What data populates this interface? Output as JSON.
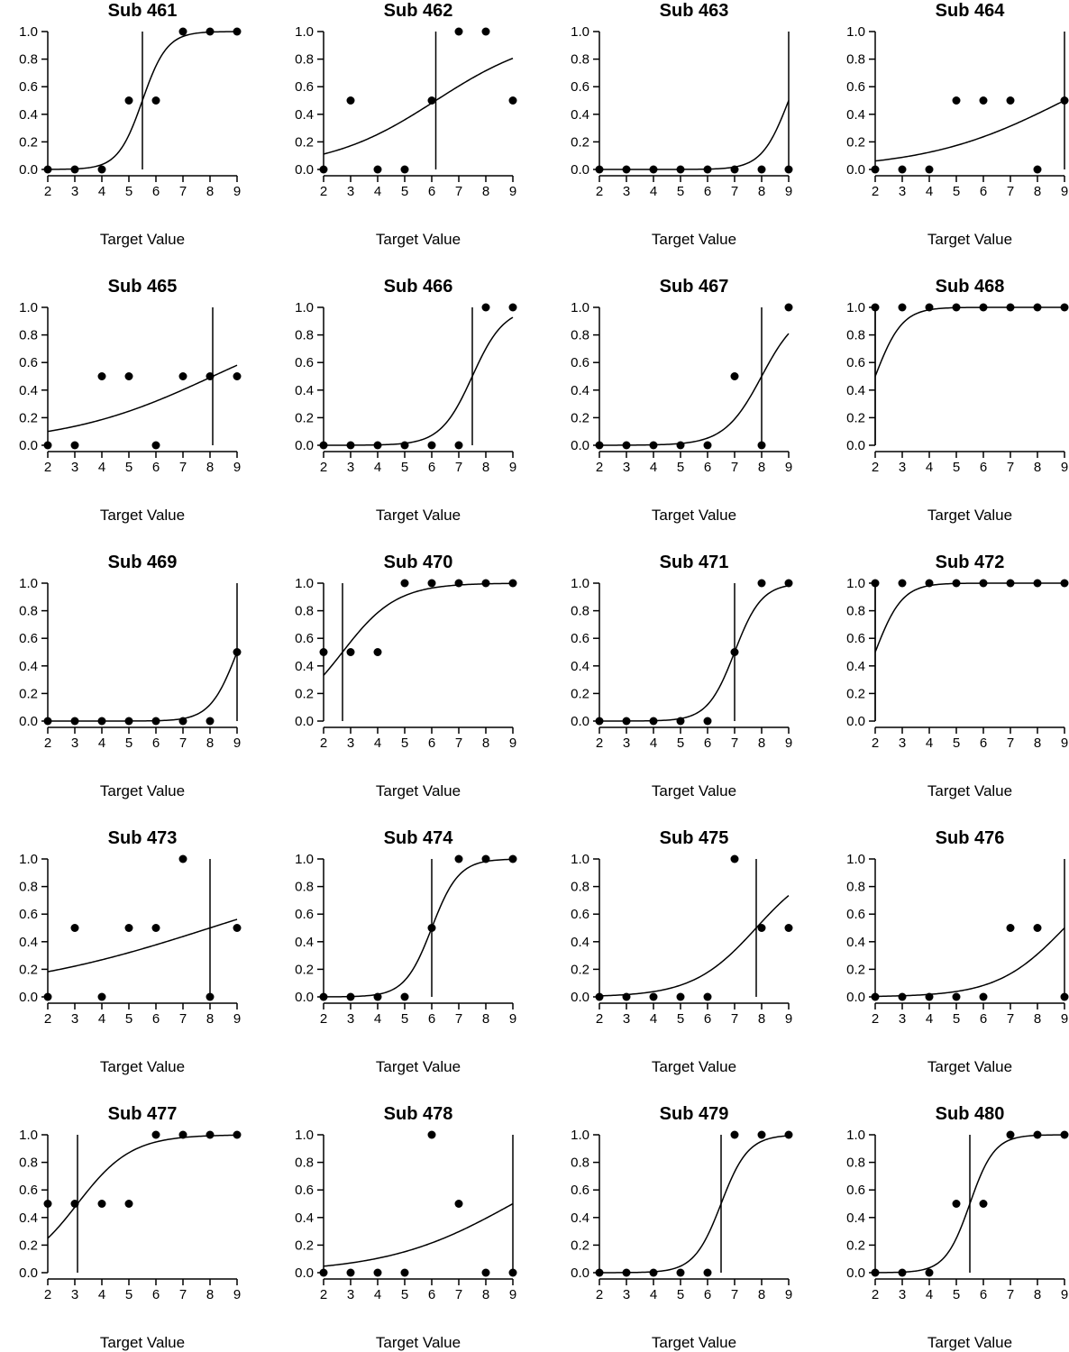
{
  "chart_data": [
    {
      "type": "scatter",
      "title": "Sub 461",
      "xlabel": "Target Value",
      "x": [
        2,
        3,
        4,
        5,
        6,
        7,
        8,
        9
      ],
      "values": [
        0,
        0,
        0,
        0.5,
        0.5,
        1,
        1,
        1
      ],
      "fit": {
        "type": "logistic",
        "threshold": 5.5,
        "slope": 2.2
      },
      "xlim": [
        2,
        9
      ],
      "ylim": [
        0,
        1
      ],
      "yticks": [
        "0.0",
        "0.2",
        "0.4",
        "0.6",
        "0.8",
        "1.0"
      ]
    },
    {
      "type": "scatter",
      "title": "Sub 462",
      "xlabel": "Target Value",
      "x": [
        2,
        3,
        4,
        5,
        6,
        7,
        8,
        9
      ],
      "values": [
        0,
        0.5,
        0,
        0,
        0.5,
        1,
        1,
        0.5
      ],
      "fit": {
        "type": "logistic",
        "threshold": 6.15,
        "slope": 0.5
      },
      "xlim": [
        2,
        9
      ],
      "ylim": [
        0,
        1
      ],
      "yticks": [
        "0.0",
        "0.2",
        "0.4",
        "0.6",
        "0.8",
        "1.0"
      ]
    },
    {
      "type": "scatter",
      "title": "Sub 463",
      "xlabel": "Target Value",
      "x": [
        2,
        3,
        4,
        5,
        6,
        7,
        8,
        9
      ],
      "values": [
        0,
        0,
        0,
        0,
        0,
        0,
        0,
        0
      ],
      "fit": {
        "type": "logistic",
        "threshold": 9,
        "slope": 2.0
      },
      "xlim": [
        2,
        9
      ],
      "ylim": [
        0,
        1
      ],
      "yticks": [
        "0.0",
        "0.2",
        "0.4",
        "0.6",
        "0.8",
        "1.0"
      ]
    },
    {
      "type": "scatter",
      "title": "Sub 464",
      "xlabel": "Target Value",
      "x": [
        2,
        3,
        4,
        5,
        6,
        7,
        8,
        9
      ],
      "values": [
        0,
        0,
        0,
        0.5,
        0.5,
        0.5,
        0,
        0.5
      ],
      "fit": {
        "type": "logistic",
        "threshold": 9,
        "slope": 0.39
      },
      "xlim": [
        2,
        9
      ],
      "ylim": [
        0,
        1
      ],
      "yticks": [
        "0.0",
        "0.2",
        "0.4",
        "0.6",
        "0.8",
        "1.0"
      ]
    },
    {
      "type": "scatter",
      "title": "Sub 465",
      "xlabel": "Target Value",
      "x": [
        2,
        3,
        4,
        5,
        6,
        7,
        8,
        9
      ],
      "values": [
        0,
        0,
        0.5,
        0.5,
        0,
        0.5,
        0.5,
        0.5
      ],
      "fit": {
        "type": "logistic",
        "threshold": 8.1,
        "slope": 0.36
      },
      "xlim": [
        2,
        9
      ],
      "ylim": [
        0,
        1
      ],
      "yticks": [
        "0.0",
        "0.2",
        "0.4",
        "0.6",
        "0.8",
        "1.0"
      ]
    },
    {
      "type": "scatter",
      "title": "Sub 466",
      "xlabel": "Target Value",
      "x": [
        2,
        3,
        4,
        5,
        6,
        7,
        8,
        9
      ],
      "values": [
        0,
        0,
        0,
        0,
        0,
        0,
        1,
        1
      ],
      "fit": {
        "type": "logistic",
        "threshold": 7.5,
        "slope": 1.7
      },
      "xlim": [
        2,
        9
      ],
      "ylim": [
        0,
        1
      ],
      "yticks": [
        "0.0",
        "0.2",
        "0.4",
        "0.6",
        "0.8",
        "1.0"
      ]
    },
    {
      "type": "scatter",
      "title": "Sub 467",
      "xlabel": "Target Value",
      "x": [
        2,
        3,
        4,
        5,
        6,
        7,
        8,
        9
      ],
      "values": [
        0,
        0,
        0,
        0,
        0,
        0.5,
        0,
        1
      ],
      "fit": {
        "type": "logistic",
        "threshold": 8,
        "slope": 1.45
      },
      "xlim": [
        2,
        9
      ],
      "ylim": [
        0,
        1
      ],
      "yticks": [
        "0.0",
        "0.2",
        "0.4",
        "0.6",
        "0.8",
        "1.0"
      ]
    },
    {
      "type": "scatter",
      "title": "Sub 468",
      "xlabel": "Target Value",
      "x": [
        2,
        3,
        4,
        5,
        6,
        7,
        8,
        9
      ],
      "values": [
        1,
        1,
        1,
        1,
        1,
        1,
        1,
        1
      ],
      "fit": {
        "type": "logistic",
        "threshold": 2,
        "slope": 2.0
      },
      "xlim": [
        2,
        9
      ],
      "ylim": [
        0,
        1
      ],
      "yticks": [
        "0.0",
        "0.2",
        "0.4",
        "0.6",
        "0.8",
        "1.0"
      ]
    },
    {
      "type": "scatter",
      "title": "Sub 469",
      "xlabel": "Target Value",
      "x": [
        2,
        3,
        4,
        5,
        6,
        7,
        8,
        9
      ],
      "values": [
        0,
        0,
        0,
        0,
        0,
        0,
        0,
        0.5
      ],
      "fit": {
        "type": "logistic",
        "threshold": 9,
        "slope": 2.0
      },
      "xlim": [
        2,
        9
      ],
      "ylim": [
        0,
        1
      ],
      "yticks": [
        "0.0",
        "0.2",
        "0.4",
        "0.6",
        "0.8",
        "1.0"
      ]
    },
    {
      "type": "scatter",
      "title": "Sub 470",
      "xlabel": "Target Value",
      "x": [
        2,
        3,
        4,
        5,
        6,
        7,
        8,
        9
      ],
      "values": [
        0.5,
        0.5,
        0.5,
        1,
        1,
        1,
        1,
        1
      ],
      "fit": {
        "type": "logistic",
        "threshold": 2.7,
        "slope": 1.0
      },
      "xlim": [
        2,
        9
      ],
      "ylim": [
        0,
        1
      ],
      "yticks": [
        "0.0",
        "0.2",
        "0.4",
        "0.6",
        "0.8",
        "1.0"
      ]
    },
    {
      "type": "scatter",
      "title": "Sub 471",
      "xlabel": "Target Value",
      "x": [
        2,
        3,
        4,
        5,
        6,
        7,
        8,
        9
      ],
      "values": [
        0,
        0,
        0,
        0,
        0,
        0.5,
        1,
        1
      ],
      "fit": {
        "type": "logistic",
        "threshold": 7,
        "slope": 2.0
      },
      "xlim": [
        2,
        9
      ],
      "ylim": [
        0,
        1
      ],
      "yticks": [
        "0.0",
        "0.2",
        "0.4",
        "0.6",
        "0.8",
        "1.0"
      ]
    },
    {
      "type": "scatter",
      "title": "Sub 472",
      "xlabel": "Target Value",
      "x": [
        2,
        3,
        4,
        5,
        6,
        7,
        8,
        9
      ],
      "values": [
        1,
        1,
        1,
        1,
        1,
        1,
        1,
        1
      ],
      "fit": {
        "type": "logistic",
        "threshold": 2,
        "slope": 2.0
      },
      "xlim": [
        2,
        9
      ],
      "ylim": [
        0,
        1
      ],
      "yticks": [
        "0.0",
        "0.2",
        "0.4",
        "0.6",
        "0.8",
        "1.0"
      ]
    },
    {
      "type": "scatter",
      "title": "Sub 473",
      "xlabel": "Target Value",
      "x": [
        2,
        3,
        4,
        5,
        6,
        7,
        8,
        9
      ],
      "values": [
        0,
        0.5,
        0,
        0.5,
        0.5,
        1,
        0,
        0.5
      ],
      "fit": {
        "type": "logistic",
        "threshold": 8,
        "slope": 0.25
      },
      "xlim": [
        2,
        9
      ],
      "ylim": [
        0,
        1
      ],
      "yticks": [
        "0.0",
        "0.2",
        "0.4",
        "0.6",
        "0.8",
        "1.0"
      ]
    },
    {
      "type": "scatter",
      "title": "Sub 474",
      "xlabel": "Target Value",
      "x": [
        2,
        3,
        4,
        5,
        6,
        7,
        8,
        9
      ],
      "values": [
        0,
        0,
        0,
        0,
        0.5,
        1,
        1,
        1
      ],
      "fit": {
        "type": "logistic",
        "threshold": 6,
        "slope": 2.0
      },
      "xlim": [
        2,
        9
      ],
      "ylim": [
        0,
        1
      ],
      "yticks": [
        "0.0",
        "0.2",
        "0.4",
        "0.6",
        "0.8",
        "1.0"
      ]
    },
    {
      "type": "scatter",
      "title": "Sub 475",
      "xlabel": "Target Value",
      "x": [
        2,
        3,
        4,
        5,
        6,
        7,
        8,
        9
      ],
      "values": [
        0,
        0,
        0,
        0,
        0,
        1,
        0.5,
        0.5
      ],
      "fit": {
        "type": "logistic",
        "threshold": 7.8,
        "slope": 0.85
      },
      "xlim": [
        2,
        9
      ],
      "ylim": [
        0,
        1
      ],
      "yticks": [
        "0.0",
        "0.2",
        "0.4",
        "0.6",
        "0.8",
        "1.0"
      ]
    },
    {
      "type": "scatter",
      "title": "Sub 476",
      "xlabel": "Target Value",
      "x": [
        2,
        3,
        4,
        5,
        6,
        7,
        8,
        9
      ],
      "values": [
        0,
        0,
        0,
        0,
        0,
        0.5,
        0.5,
        0
      ],
      "fit": {
        "type": "logistic",
        "threshold": 9,
        "slope": 0.8
      },
      "xlim": [
        2,
        9
      ],
      "ylim": [
        0,
        1
      ],
      "yticks": [
        "0.0",
        "0.2",
        "0.4",
        "0.6",
        "0.8",
        "1.0"
      ]
    },
    {
      "type": "scatter",
      "title": "Sub 477",
      "xlabel": "Target Value",
      "x": [
        2,
        3,
        4,
        5,
        6,
        7,
        8,
        9
      ],
      "values": [
        0.5,
        0.5,
        0.5,
        0.5,
        1,
        1,
        1,
        1
      ],
      "fit": {
        "type": "logistic",
        "threshold": 3.1,
        "slope": 1.0
      },
      "xlim": [
        2,
        9
      ],
      "ylim": [
        0,
        1
      ],
      "yticks": [
        "0.0",
        "0.2",
        "0.4",
        "0.6",
        "0.8",
        "1.0"
      ]
    },
    {
      "type": "scatter",
      "title": "Sub 478",
      "xlabel": "Target Value",
      "x": [
        2,
        3,
        4,
        5,
        6,
        7,
        8,
        9
      ],
      "values": [
        0,
        0,
        0,
        0,
        1,
        0.5,
        0,
        0
      ],
      "fit": {
        "type": "logistic",
        "threshold": 9,
        "slope": 0.43
      },
      "xlim": [
        2,
        9
      ],
      "ylim": [
        0,
        1
      ],
      "yticks": [
        "0.0",
        "0.2",
        "0.4",
        "0.6",
        "0.8",
        "1.0"
      ]
    },
    {
      "type": "scatter",
      "title": "Sub 479",
      "xlabel": "Target Value",
      "x": [
        2,
        3,
        4,
        5,
        6,
        7,
        8,
        9
      ],
      "values": [
        0,
        0,
        0,
        0,
        0,
        1,
        1,
        1
      ],
      "fit": {
        "type": "logistic",
        "threshold": 6.5,
        "slope": 2.0
      },
      "xlim": [
        2,
        9
      ],
      "ylim": [
        0,
        1
      ],
      "yticks": [
        "0.0",
        "0.2",
        "0.4",
        "0.6",
        "0.8",
        "1.0"
      ]
    },
    {
      "type": "scatter",
      "title": "Sub 480",
      "xlabel": "Target Value",
      "x": [
        2,
        3,
        4,
        5,
        6,
        7,
        8,
        9
      ],
      "values": [
        0,
        0,
        0,
        0.5,
        0.5,
        1,
        1,
        1
      ],
      "fit": {
        "type": "logistic",
        "threshold": 5.5,
        "slope": 2.2
      },
      "xlim": [
        2,
        9
      ],
      "ylim": [
        0,
        1
      ],
      "yticks": [
        "0.0",
        "0.2",
        "0.4",
        "0.6",
        "0.8",
        "1.0"
      ]
    }
  ]
}
